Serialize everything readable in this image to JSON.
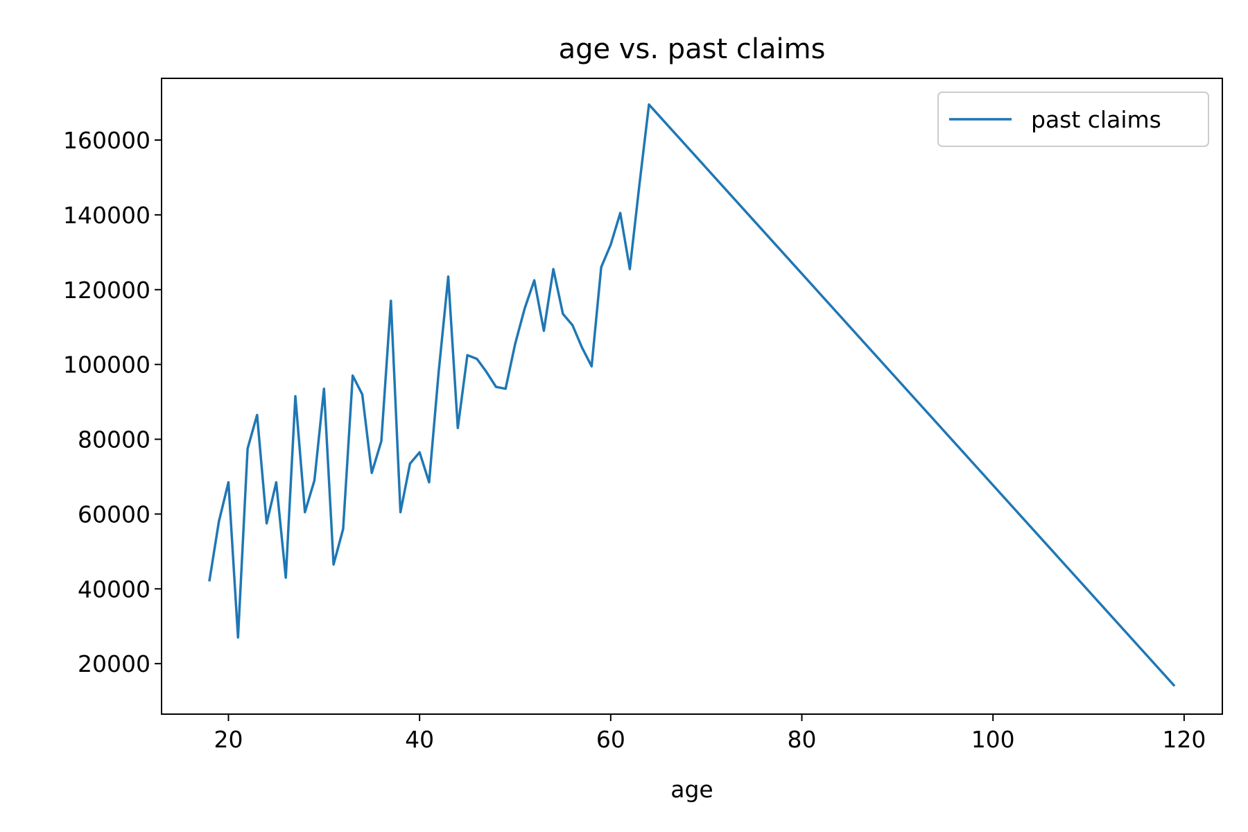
{
  "chart_data": {
    "type": "line",
    "title": "age vs. past claims",
    "xlabel": "age",
    "ylabel": "",
    "xlim": [
      13,
      124
    ],
    "ylim": [
      6500,
      176500
    ],
    "xticks": [
      20,
      40,
      60,
      80,
      100,
      120
    ],
    "yticks": [
      20000,
      40000,
      60000,
      80000,
      100000,
      120000,
      140000,
      160000
    ],
    "grid": false,
    "legend_position": "top-right",
    "series": [
      {
        "name": "past claims",
        "color": "#1f77b4",
        "x": [
          18,
          19,
          20,
          21,
          22,
          23,
          24,
          25,
          26,
          27,
          28,
          29,
          30,
          31,
          32,
          33,
          34,
          35,
          36,
          37,
          38,
          39,
          40,
          41,
          42,
          43,
          44,
          45,
          46,
          47,
          48,
          49,
          50,
          51,
          52,
          53,
          54,
          55,
          56,
          57,
          58,
          59,
          60,
          61,
          62,
          63,
          64,
          119
        ],
        "y": [
          42000,
          58000,
          68500,
          27000,
          77500,
          86500,
          57500,
          68500,
          43000,
          91500,
          60500,
          69000,
          93500,
          46500,
          56000,
          97000,
          92000,
          71000,
          79500,
          117000,
          60500,
          73500,
          76500,
          68500,
          98000,
          123500,
          83000,
          102500,
          101500,
          98000,
          94000,
          93500,
          105500,
          115000,
          122500,
          109000,
          125500,
          113500,
          110500,
          104500,
          99500,
          126000,
          132000,
          140500,
          125500,
          148000,
          169500,
          14000
        ]
      }
    ]
  }
}
